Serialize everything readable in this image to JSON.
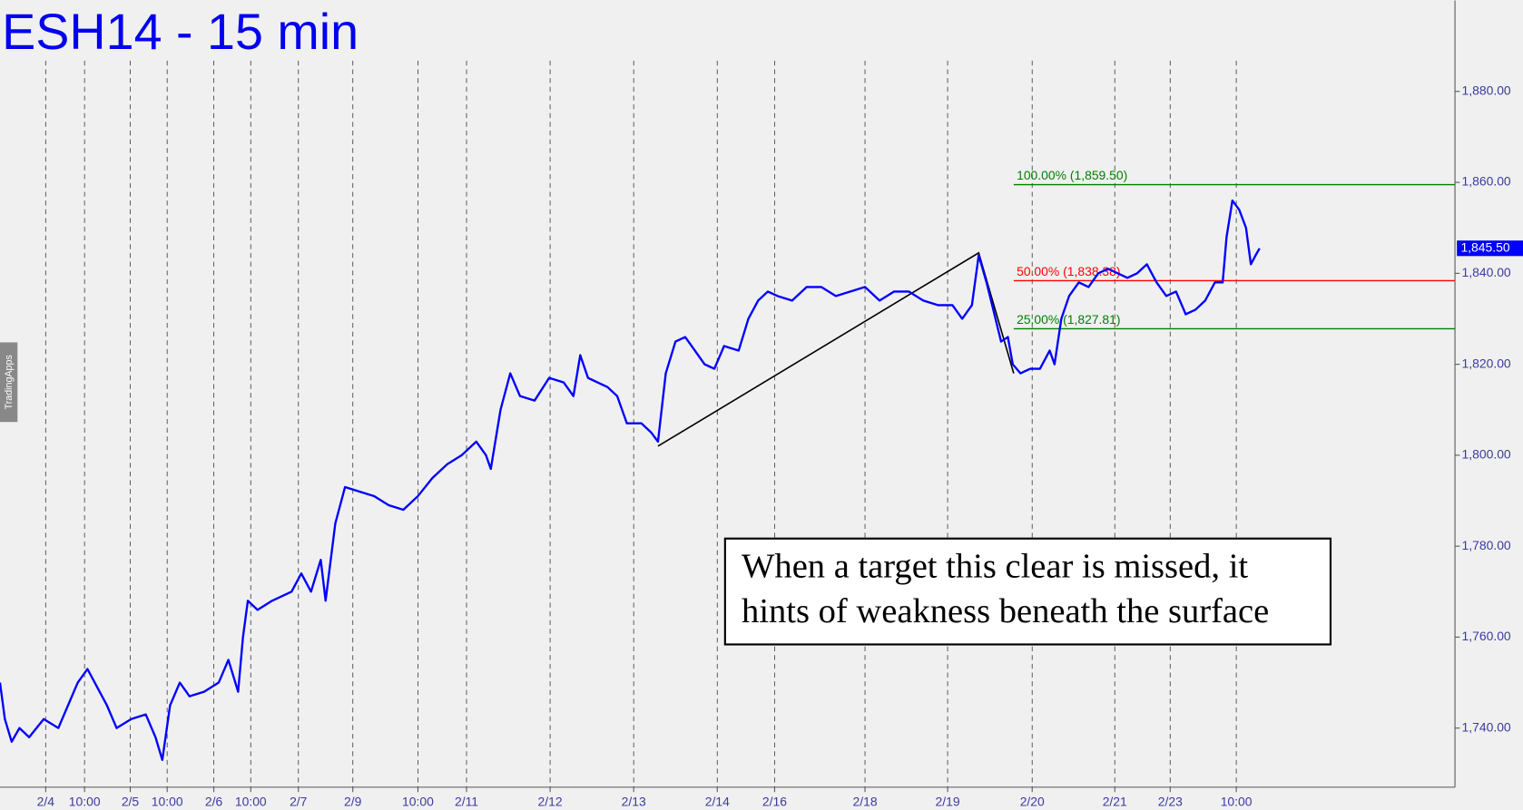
{
  "chart_data": {
    "type": "line",
    "title": "ESH14 - 15 min",
    "side_tab": "TradingApps",
    "x": [
      0,
      5,
      12,
      20,
      30,
      45,
      60,
      70,
      80,
      90,
      100,
      110,
      120,
      135,
      150,
      160,
      167,
      175,
      185,
      195,
      210,
      225,
      235,
      245,
      250,
      255,
      265,
      280,
      300,
      310,
      320,
      330,
      335,
      345,
      355,
      370,
      385,
      400,
      415,
      430,
      445,
      460,
      475,
      490,
      500,
      505,
      515,
      525,
      535,
      550,
      565,
      580,
      590,
      597,
      605,
      615,
      625,
      635,
      645,
      660,
      670,
      677,
      685,
      695,
      705,
      715,
      725,
      735,
      745,
      760,
      770,
      780,
      790,
      800,
      815,
      830,
      845,
      860,
      875,
      890,
      905,
      920,
      935,
      950,
      965,
      980,
      990,
      1000,
      1007,
      1015,
      1022,
      1030,
      1037,
      1042,
      1050,
      1060,
      1070,
      1080,
      1085,
      1092,
      1100,
      1110,
      1120,
      1130,
      1140,
      1150,
      1160,
      1170,
      1180,
      1190,
      1200,
      1210,
      1220,
      1230,
      1240,
      1250,
      1258,
      1262,
      1268,
      1275,
      1282,
      1287,
      1292,
      1296
    ],
    "series": [
      {
        "name": "ESH14",
        "color": "#0000ff",
        "values": [
          1750,
          1742,
          1737,
          1740,
          1738,
          1742,
          1740,
          1745,
          1750,
          1753,
          1749,
          1745,
          1740,
          1742,
          1743,
          1738,
          1733,
          1745,
          1750,
          1747,
          1748,
          1750,
          1755,
          1748,
          1760,
          1768,
          1766,
          1768,
          1770,
          1774,
          1770,
          1777,
          1768,
          1785,
          1793,
          1792,
          1791,
          1789,
          1788,
          1791,
          1795,
          1798,
          1800,
          1803,
          1800,
          1797,
          1810,
          1818,
          1813,
          1812,
          1817,
          1816,
          1813,
          1822,
          1817,
          1816,
          1815,
          1813,
          1807,
          1807,
          1805,
          1803,
          1818,
          1825,
          1826,
          1823,
          1820,
          1819,
          1824,
          1823,
          1830,
          1834,
          1836,
          1835,
          1834,
          1837,
          1837,
          1835,
          1836,
          1837,
          1834,
          1836,
          1836,
          1834,
          1833,
          1833,
          1830,
          1833,
          1844,
          1838,
          1832,
          1825,
          1826,
          1820,
          1818,
          1819,
          1819,
          1823,
          1820,
          1830,
          1835,
          1838,
          1837,
          1840,
          1841,
          1840,
          1839,
          1840,
          1842,
          1838,
          1835,
          1836,
          1831,
          1832,
          1834,
          1838,
          1838,
          1848,
          1856,
          1854,
          1850,
          1842,
          1844,
          1845.5
        ]
      }
    ],
    "xlim": [
      0,
      1497
    ],
    "ylim": [
      1727,
      1900
    ],
    "xticks": [
      {
        "value": 47,
        "label": "2/4"
      },
      {
        "value": 87,
        "label": "10:00"
      },
      {
        "value": 134,
        "label": "2/5"
      },
      {
        "value": 172,
        "label": "10:00"
      },
      {
        "value": 220,
        "label": "2/6"
      },
      {
        "value": 258,
        "label": "10:00"
      },
      {
        "value": 307,
        "label": "2/7"
      },
      {
        "value": 363,
        "label": "2/9"
      },
      {
        "value": 430,
        "label": "10:00"
      },
      {
        "value": 480,
        "label": "2/11"
      },
      {
        "value": 566,
        "label": "2/12"
      },
      {
        "value": 652,
        "label": "2/13"
      },
      {
        "value": 738,
        "label": "2/14"
      },
      {
        "value": 797,
        "label": "2/16"
      },
      {
        "value": 890,
        "label": "2/18"
      },
      {
        "value": 975,
        "label": "2/19"
      },
      {
        "value": 1062,
        "label": "2/20"
      },
      {
        "value": 1147,
        "label": "2/21"
      },
      {
        "value": 1204,
        "label": "2/23"
      },
      {
        "value": 1272,
        "label": "10:00"
      }
    ],
    "yticks": [
      {
        "value": 1740,
        "label": "1,740.00"
      },
      {
        "value": 1760,
        "label": "1,760.00"
      },
      {
        "value": 1780,
        "label": "1,780.00"
      },
      {
        "value": 1800,
        "label": "1,800.00"
      },
      {
        "value": 1820,
        "label": "1,820.00"
      },
      {
        "value": 1840,
        "label": "1,840.00"
      },
      {
        "value": 1860,
        "label": "1,860.00"
      },
      {
        "value": 1880,
        "label": "1,880.00"
      }
    ],
    "grid": true,
    "levels": [
      {
        "label": "100.00% (1,859.50)",
        "value": 1859.5,
        "color": "#008000"
      },
      {
        "label": "50.00% (1,838.38)",
        "value": 1838.38,
        "color": "#ff0000"
      },
      {
        "label": "25.00% (1,827.81)",
        "value": 1827.81,
        "color": "#008000"
      }
    ],
    "levels_start": 1043,
    "trend_line": {
      "x": [
        677,
        1007,
        1043
      ],
      "values": [
        1802,
        1844.5,
        1818
      ]
    },
    "last_price": {
      "value": 1845.5,
      "label": "1,845.50"
    },
    "annotation": [
      "When a target this clear is missed, it",
      "hints of weakness beneath the surface"
    ]
  }
}
